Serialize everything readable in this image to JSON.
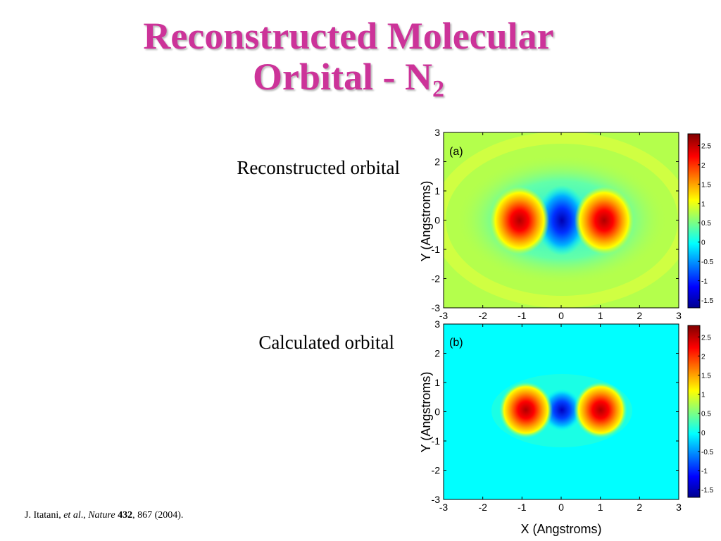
{
  "slide": {
    "title_line1": "Reconstructed Molecular",
    "title_line2": "Orbital - N",
    "title_subscript": "2",
    "label_reconstructed": "Reconstructed orbital",
    "label_calculated": "Calculated orbital"
  },
  "citation": {
    "author": "J. Itatani, ",
    "etal": "et al",
    "sep1": "., ",
    "journal": "Nature",
    "sep2": " ",
    "volume": "432",
    "rest": ", 867 (2004)."
  },
  "chart_data": [
    {
      "type": "heatmap",
      "panel_label": "(a)",
      "xlim": [
        -3,
        3
      ],
      "ylim": [
        -3,
        3
      ],
      "ylabel": "Y (Angstroms)",
      "xticks": [
        "-3",
        "-2",
        "-1",
        "0",
        "1",
        "2",
        "3"
      ],
      "yticks": [
        "3",
        "2",
        "1",
        "0",
        "-1",
        "-2",
        "-3"
      ],
      "colorbar": {
        "range": [
          -1.7,
          2.8
        ],
        "ticks": [
          "2.5",
          "2",
          "1.5",
          "1",
          "0.5",
          "0",
          "-0.5",
          "-1",
          "-1.5"
        ]
      },
      "background_value": 0.8,
      "features": [
        {
          "kind": "positive lobe",
          "x": -1.1,
          "y": 0,
          "peak": 2.7
        },
        {
          "kind": "negative lobe",
          "x": 0.0,
          "y": 0,
          "peak": -1.5
        },
        {
          "kind": "positive lobe",
          "x": 1.1,
          "y": 0,
          "peak": 2.7
        }
      ]
    },
    {
      "type": "heatmap",
      "panel_label": "(b)",
      "xlim": [
        -3,
        3
      ],
      "ylim": [
        -3,
        3
      ],
      "xlabel": "X (Angstroms)",
      "ylabel": "Y (Angstroms)",
      "xticks": [
        "-3",
        "-2",
        "-1",
        "0",
        "1",
        "2",
        "3"
      ],
      "yticks": [
        "3",
        "2",
        "1",
        "0",
        "-1",
        "-2",
        "-3"
      ],
      "colorbar": {
        "range": [
          -1.7,
          2.8
        ],
        "ticks": [
          "2.5",
          "2",
          "1.5",
          "1",
          "0.5",
          "0",
          "-0.5",
          "-1",
          "-1.5"
        ]
      },
      "background_value": 0.0,
      "features": [
        {
          "kind": "positive lobe",
          "x": -1.0,
          "y": 0,
          "peak": 2.7
        },
        {
          "kind": "negative lobe",
          "x": 0.0,
          "y": 0,
          "peak": -1.5
        },
        {
          "kind": "positive lobe",
          "x": 1.0,
          "y": 0,
          "peak": 2.7
        }
      ]
    }
  ]
}
